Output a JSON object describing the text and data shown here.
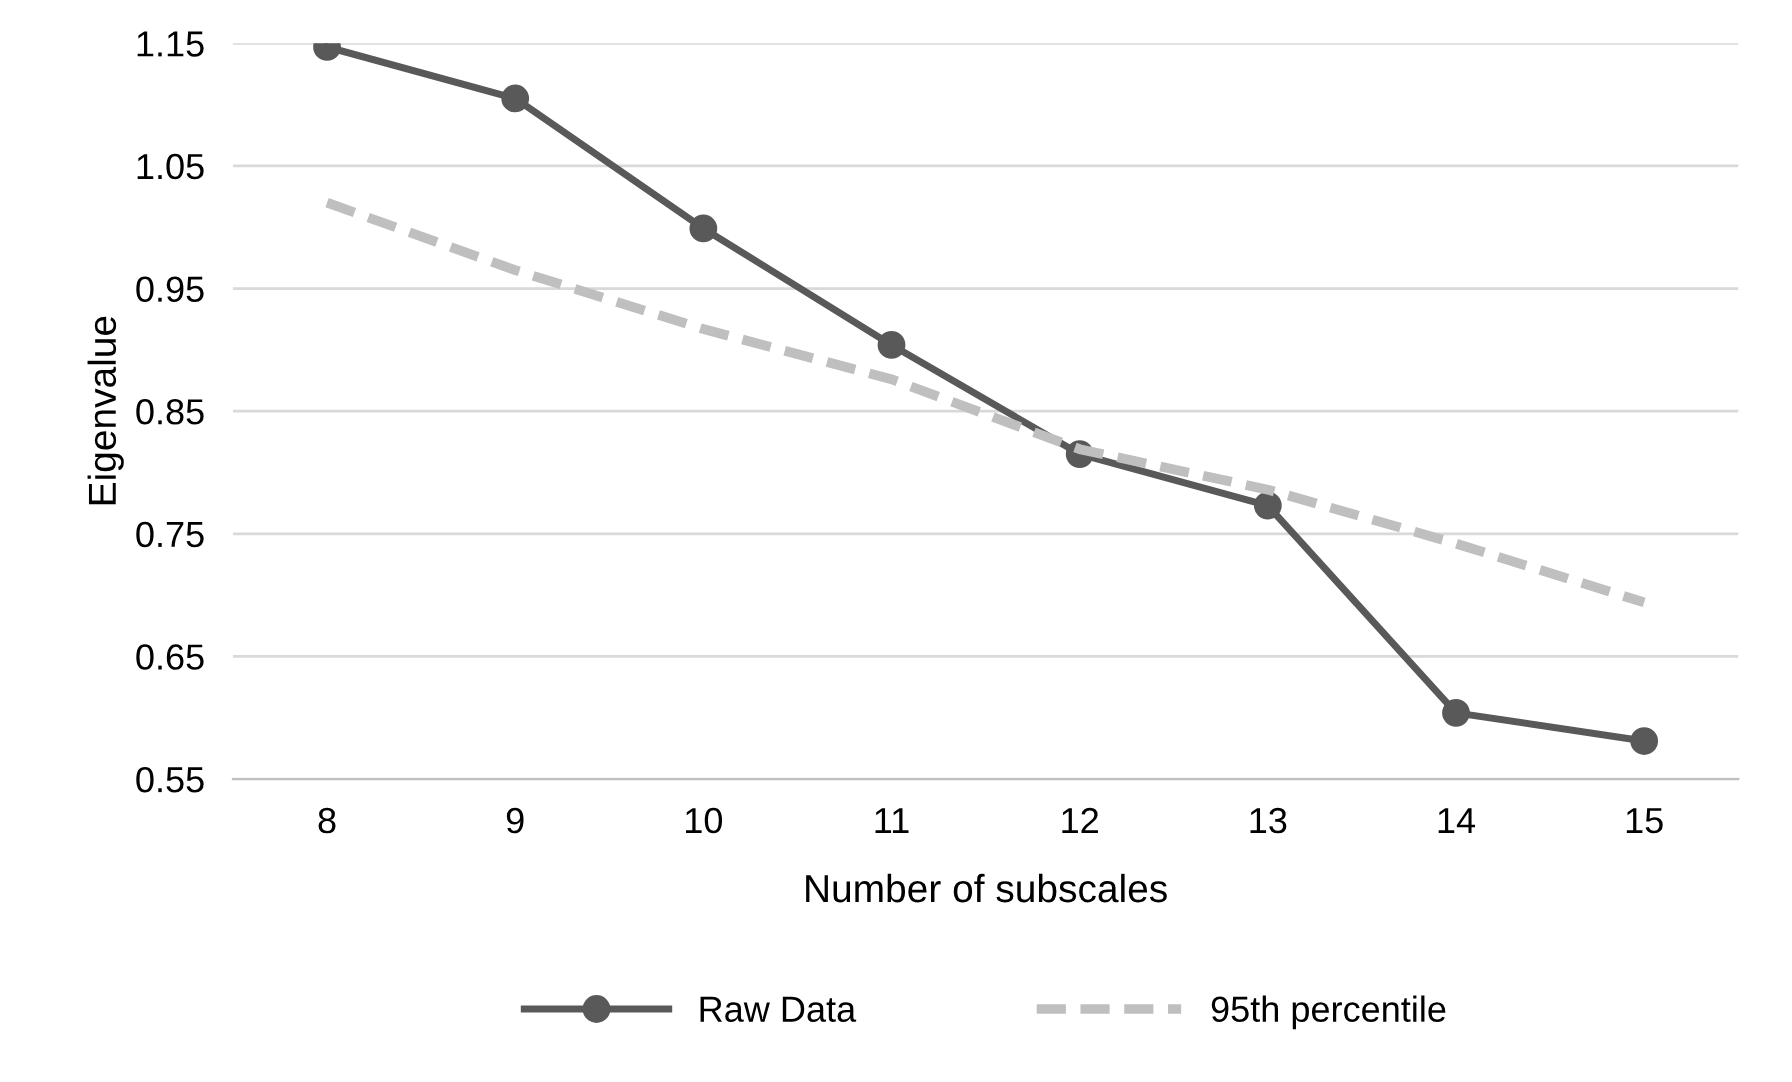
{
  "chart_data": {
    "type": "line",
    "xlabel": "Number of subscales",
    "ylabel": "Eigenvalue",
    "categories": [
      "8",
      "9",
      "10",
      "11",
      "12",
      "13",
      "14",
      "15"
    ],
    "series": [
      {
        "name": "Raw Data",
        "color": "#595959",
        "values": [
          1.147,
          1.105,
          0.999,
          0.904,
          0.815,
          0.773,
          0.604,
          0.581
        ],
        "marker": "circle",
        "line_style": "solid"
      },
      {
        "name": "95th percentile",
        "color": "#bfbfbf",
        "values": [
          1.02,
          0.965,
          0.917,
          0.876,
          0.819,
          0.786,
          0.742,
          0.694
        ],
        "marker": "none",
        "line_style": "dashed"
      }
    ],
    "ylim": [
      0.55,
      1.15
    ],
    "yticks": [
      {
        "value": 0.55,
        "label": "0.55"
      },
      {
        "value": 0.65,
        "label": "0.65"
      },
      {
        "value": 0.75,
        "label": "0.75"
      },
      {
        "value": 0.85,
        "label": "0.85"
      },
      {
        "value": 0.95,
        "label": "0.95"
      },
      {
        "value": 1.05,
        "label": "1.05"
      },
      {
        "value": 1.15,
        "label": "1.15"
      }
    ],
    "grid": "y",
    "legend": "bottom"
  }
}
